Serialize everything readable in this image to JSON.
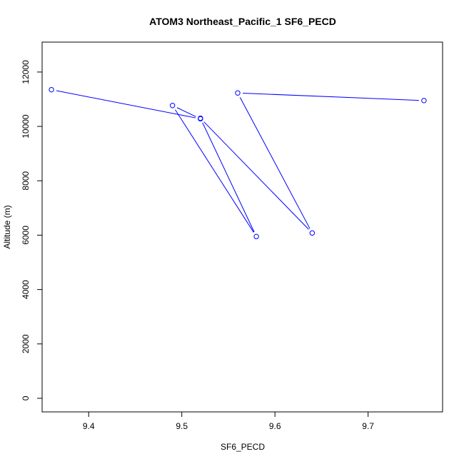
{
  "chart_data": {
    "type": "line",
    "title": "ATOM3 Northeast_Pacific_1 SF6_PECD",
    "xlabel": "SF6_PECD",
    "ylabel": "Altitude (m)",
    "xlim": [
      9.35,
      9.78
    ],
    "ylim": [
      -500,
      13100
    ],
    "x_ticks": [
      9.4,
      9.5,
      9.6,
      9.7
    ],
    "x_tick_labels": [
      "9.4",
      "9.5",
      "9.6",
      "9.7"
    ],
    "y_ticks": [
      0,
      2000,
      4000,
      6000,
      8000,
      10000,
      12000
    ],
    "y_tick_labels": [
      "0",
      "2000",
      "4000",
      "6000",
      "8000",
      "10000",
      "12000"
    ],
    "grid": false,
    "legend": "none",
    "series_color": "#0000ff",
    "series": [
      {
        "x": [
          9.36,
          9.52,
          9.49,
          9.58,
          9.52,
          9.64,
          9.56,
          9.76
        ],
        "y": [
          11350,
          10280,
          10770,
          5950,
          10300,
          6080,
          11230,
          10950
        ]
      }
    ]
  }
}
